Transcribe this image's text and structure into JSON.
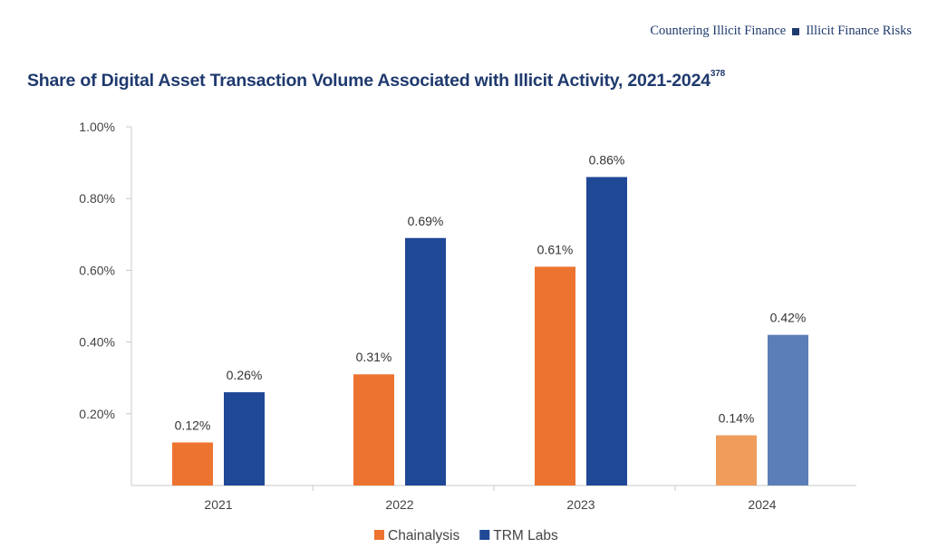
{
  "header": {
    "section": "Countering Illicit Finance",
    "subsection": "Illicit Finance Risks"
  },
  "chart_data": {
    "type": "bar",
    "title": "Share of Digital Asset Transaction Volume Associated with Illicit Activity, 2021-2024",
    "footnote_ref": "378",
    "categories": [
      "2021",
      "2022",
      "2023",
      "2024"
    ],
    "series": [
      {
        "name": "Chainalysis",
        "color": "#ed7430",
        "values": [
          0.12,
          0.31,
          0.61,
          0.14
        ],
        "labels": [
          "0.12%",
          "0.31%",
          "0.61%",
          "0.14%"
        ]
      },
      {
        "name": "TRM Labs",
        "color": "#1f4896",
        "values": [
          0.26,
          0.69,
          0.86,
          0.42
        ],
        "labels": [
          "0.26%",
          "0.69%",
          "0.86%",
          "0.42%"
        ]
      }
    ],
    "highlight_last_category": {
      "category": "2024",
      "Chainalysis_color": "#f09d5c",
      "TRM_Labs_color": "#5b7db8"
    },
    "y_ticks": [
      0.2,
      0.4,
      0.6,
      0.8,
      1.0
    ],
    "y_tick_labels": [
      "0.20%",
      "0.40%",
      "0.60%",
      "0.80%",
      "1.00%"
    ],
    "ylim": [
      0,
      1.0
    ],
    "xlabel": "",
    "ylabel": "",
    "grid": false,
    "legend": "bottom-center"
  }
}
